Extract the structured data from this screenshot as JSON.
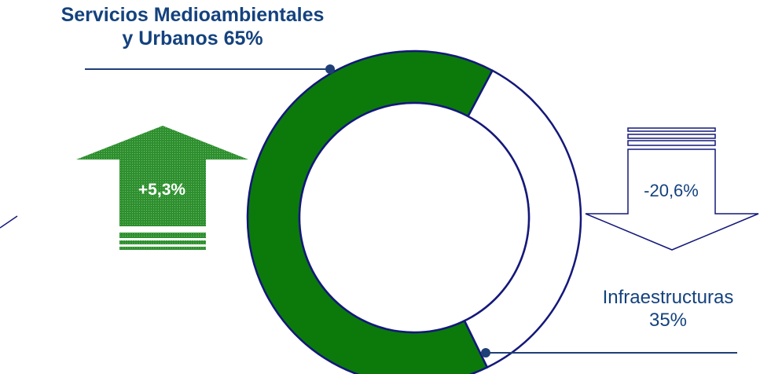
{
  "chart_data": {
    "type": "pie",
    "variant": "donut",
    "slices": [
      {
        "label_line1": "Servicios Medioambientales",
        "label_line2": "y  Urbanos 65%",
        "value": 65,
        "color": "#0b7a0b"
      },
      {
        "label_line1": "Infraestructuras",
        "label_line2": "35%",
        "value": 35,
        "color": "#ffffff"
      }
    ],
    "indicators": [
      {
        "direction": "up",
        "text": "+5,3%",
        "color": "#2e8b2e"
      },
      {
        "direction": "down",
        "text": "-20,6%",
        "color": "#ffffff"
      }
    ]
  },
  "colors": {
    "outline": "#14187a",
    "label_text": "#14427e",
    "leader_line": "#1f3f77"
  }
}
